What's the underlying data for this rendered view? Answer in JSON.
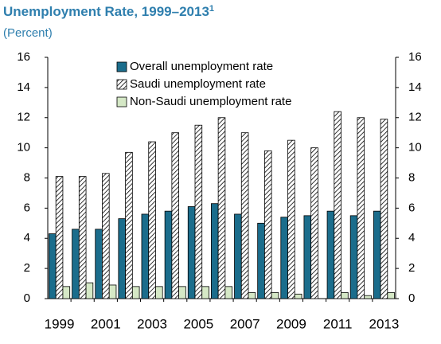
{
  "chart_data": {
    "type": "bar",
    "title": "Unemployment Rate, 1999–2013",
    "title_footnote": "1",
    "subtitle": "(Percent)",
    "categories": [
      "1999",
      null,
      "2001",
      null,
      "2003",
      null,
      "2005",
      null,
      "2007",
      null,
      "2009",
      null,
      "2011",
      null,
      "2013"
    ],
    "series": [
      {
        "name": "Overall unemployment rate",
        "color": "#1b6d8c",
        "hatch": false,
        "values": [
          4.3,
          4.6,
          4.6,
          5.3,
          5.6,
          5.8,
          6.1,
          6.3,
          5.6,
          5.0,
          5.4,
          5.5,
          5.8,
          5.5,
          5.8
        ]
      },
      {
        "name": "Saudi unemployment rate",
        "color": "#ffffff",
        "hatch": true,
        "values": [
          8.1,
          8.1,
          8.3,
          9.7,
          10.4,
          11.0,
          11.5,
          12.0,
          11.0,
          9.8,
          10.5,
          10.0,
          12.4,
          12.0,
          11.9
        ]
      },
      {
        "name": "Non-Saudi unemployment rate",
        "color": "#d5e8c6",
        "hatch": false,
        "values": [
          0.8,
          1.05,
          0.9,
          0.8,
          0.8,
          0.8,
          0.8,
          0.8,
          0.4,
          0.4,
          0.3,
          0.0,
          0.4,
          0.2,
          0.4
        ]
      }
    ],
    "ylim": [
      0,
      16
    ],
    "yticks": [
      0,
      2,
      4,
      6,
      8,
      10,
      12,
      14,
      16
    ],
    "y2lim": [
      0,
      16
    ],
    "y2ticks": [
      0,
      2,
      4,
      6,
      8,
      10,
      12,
      14,
      16
    ],
    "grid": false
  }
}
